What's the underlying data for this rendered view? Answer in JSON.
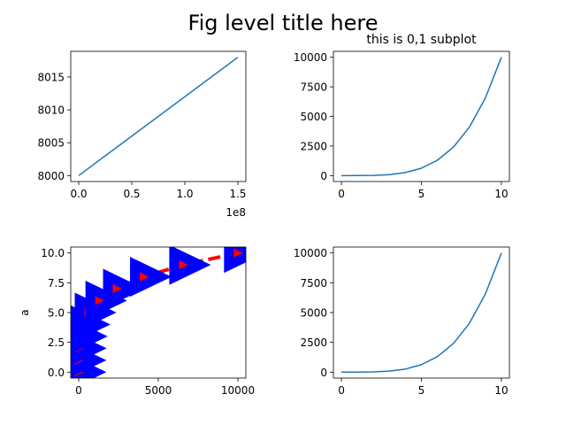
{
  "figure": {
    "title": "Fig level title here"
  },
  "chart_data": [
    {
      "id": "ax00",
      "type": "line",
      "title": "",
      "xlabel": "",
      "ylabel": "",
      "x_offset_text": "1e8",
      "xlim": [
        -0.075,
        1.575
      ],
      "ylim": [
        7999.1,
        8018.9
      ],
      "xticks": [
        0.0,
        0.5,
        1.0,
        1.5
      ],
      "xtick_labels": [
        "0.0",
        "0.5",
        "1.0",
        "1.5"
      ],
      "yticks": [
        8000,
        8005,
        8010,
        8015
      ],
      "ytick_labels": [
        "8000",
        "8005",
        "8010",
        "8015"
      ],
      "grid": false,
      "series": [
        {
          "color": "#1f77b4",
          "x": [
            0.0,
            1.5
          ],
          "y": [
            8000,
            8018
          ]
        }
      ]
    },
    {
      "id": "ax01",
      "type": "line",
      "title": "this is 0,1 subplot",
      "xlabel": "",
      "ylabel": "",
      "xlim": [
        -0.5,
        10.5
      ],
      "ylim": [
        -500,
        10500
      ],
      "xticks": [
        0,
        5,
        10
      ],
      "xtick_labels": [
        "0",
        "5",
        "10"
      ],
      "yticks": [
        0,
        2500,
        5000,
        7500,
        10000
      ],
      "ytick_labels": [
        "0",
        "2500",
        "5000",
        "7500",
        "10000"
      ],
      "grid": false,
      "series": [
        {
          "color": "#1f77b4",
          "x": [
            0,
            1,
            2,
            3,
            4,
            5,
            6,
            7,
            8,
            9,
            10
          ],
          "y": [
            0,
            1,
            16,
            81,
            256,
            625,
            1296,
            2401,
            4096,
            6561,
            10000
          ]
        }
      ]
    },
    {
      "id": "ax10",
      "type": "line",
      "title": "",
      "xlabel": "",
      "ylabel": "a",
      "xlim": [
        -500,
        10500
      ],
      "ylim": [
        -0.5,
        10.5
      ],
      "xticks": [
        0,
        5000,
        10000
      ],
      "xtick_labels": [
        "0",
        "5000",
        "10000"
      ],
      "yticks": [
        0.0,
        2.5,
        5.0,
        7.5,
        10.0
      ],
      "ytick_labels": [
        "0.0",
        "2.5",
        "5.0",
        "7.5",
        "10.0"
      ],
      "grid": false,
      "series": [
        {
          "color": "#ff0000",
          "line_style": "dashed",
          "marker": "triangle-right",
          "marker_face_color": "#ff0000",
          "marker_edge_color": "#0000ff",
          "x": [
            0,
            1,
            16,
            81,
            256,
            625,
            1296,
            2401,
            4096,
            6561,
            10000
          ],
          "y": [
            0,
            1,
            2,
            3,
            4,
            5,
            6,
            7,
            8,
            9,
            10
          ]
        }
      ]
    },
    {
      "id": "ax11",
      "type": "line",
      "title": "",
      "xlabel": "",
      "ylabel": "",
      "xlim": [
        -0.5,
        10.5
      ],
      "ylim": [
        -500,
        10500
      ],
      "xticks": [
        0,
        5,
        10
      ],
      "xtick_labels": [
        "0",
        "5",
        "10"
      ],
      "yticks": [
        0,
        2500,
        5000,
        7500,
        10000
      ],
      "ytick_labels": [
        "0",
        "2500",
        "5000",
        "7500",
        "10000"
      ],
      "grid": false,
      "series": [
        {
          "color": "#1f77b4",
          "x": [
            0,
            1,
            2,
            3,
            4,
            5,
            6,
            7,
            8,
            9,
            10
          ],
          "y": [
            0,
            1,
            16,
            81,
            256,
            625,
            1296,
            2401,
            4096,
            6561,
            10000
          ]
        }
      ]
    }
  ]
}
